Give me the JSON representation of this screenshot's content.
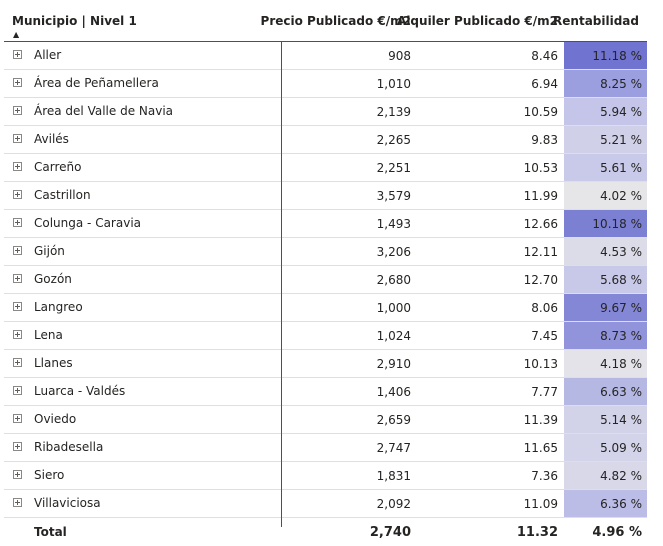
{
  "columns": {
    "municipio": "Municipio | Nivel 1",
    "precio": "Precio Publicado €/m2",
    "alquiler": "Alquiler Publicado €/m2",
    "rentabilidad": "Rentabilidad"
  },
  "sort_indicator": "▲",
  "rows": [
    {
      "name": "Aller",
      "precio": "908",
      "alquiler": "8.46",
      "rent": "11.18 %",
      "rent_color": "#7073cf"
    },
    {
      "name": "Área de Peñamellera",
      "precio": "1,010",
      "alquiler": "6.94",
      "rent": "8.25 %",
      "rent_color": "#9b9fdf"
    },
    {
      "name": "Área del Valle de Navia",
      "precio": "2,139",
      "alquiler": "10.59",
      "rent": "5.94 %",
      "rent_color": "#c4c5e8"
    },
    {
      "name": "Avilés",
      "precio": "2,265",
      "alquiler": "9.83",
      "rent": "5.21 %",
      "rent_color": "#d0d0e9"
    },
    {
      "name": "Carreño",
      "precio": "2,251",
      "alquiler": "10.53",
      "rent": "5.61 %",
      "rent_color": "#c9c9e9"
    },
    {
      "name": "Castrillon",
      "precio": "3,579",
      "alquiler": "11.99",
      "rent": "4.02 %",
      "rent_color": "#e6e6e8"
    },
    {
      "name": "Colunga - Caravia",
      "precio": "1,493",
      "alquiler": "12.66",
      "rent": "10.18 %",
      "rent_color": "#7c80d3"
    },
    {
      "name": "Gijón",
      "precio": "3,206",
      "alquiler": "12.11",
      "rent": "4.53 %",
      "rent_color": "#dcdce9"
    },
    {
      "name": "Gozón",
      "precio": "2,680",
      "alquiler": "12.70",
      "rent": "5.68 %",
      "rent_color": "#c8c9e9"
    },
    {
      "name": "Langreo",
      "precio": "1,000",
      "alquiler": "8.06",
      "rent": "9.67 %",
      "rent_color": "#8487d6"
    },
    {
      "name": "Lena",
      "precio": "1,024",
      "alquiler": "7.45",
      "rent": "8.73 %",
      "rent_color": "#9294db"
    },
    {
      "name": "Llanes",
      "precio": "2,910",
      "alquiler": "10.13",
      "rent": "4.18 %",
      "rent_color": "#e3e3e9"
    },
    {
      "name": "Luarca - Valdés",
      "precio": "1,406",
      "alquiler": "7.77",
      "rent": "6.63 %",
      "rent_color": "#b6b8e4"
    },
    {
      "name": "Oviedo",
      "precio": "2,659",
      "alquiler": "11.39",
      "rent": "5.14 %",
      "rent_color": "#d2d2e9"
    },
    {
      "name": "Ribadesella",
      "precio": "2,747",
      "alquiler": "11.65",
      "rent": "5.09 %",
      "rent_color": "#d3d3e9"
    },
    {
      "name": "Siero",
      "precio": "1,831",
      "alquiler": "7.36",
      "rent": "4.82 %",
      "rent_color": "#d8d8e9"
    },
    {
      "name": "Villaviciosa",
      "precio": "2,092",
      "alquiler": "11.09",
      "rent": "6.36 %",
      "rent_color": "#bcbde6"
    }
  ],
  "total": {
    "name": "Total",
    "precio": "2,740",
    "alquiler": "11.32",
    "rent": "4.96 %"
  }
}
